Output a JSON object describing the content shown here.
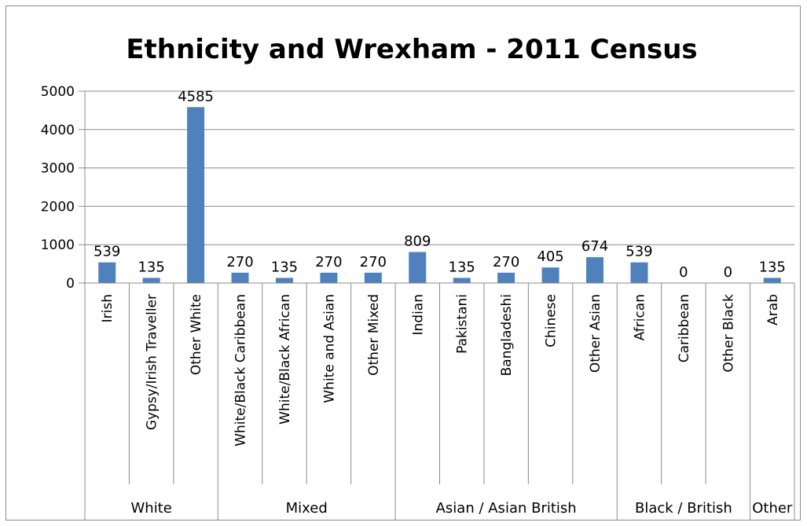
{
  "chart_data": {
    "type": "bar",
    "title": "Ethnicity and Wrexham - 2011 Census",
    "xlabel": "",
    "ylabel": "",
    "ylim": [
      0,
      5000
    ],
    "yticks": [
      "0",
      "1000",
      "2000",
      "3000",
      "4000",
      "5000"
    ],
    "grid": true,
    "legend": "none",
    "bar_color": "#4f81bd",
    "categories": [
      "Irish",
      "Gypsy/Irish Traveller",
      "Other White",
      "White/Black Caribbean",
      "White/Black African",
      "White and Asian",
      "Other Mixed",
      "Indian",
      "Pakistani",
      "Bangladeshi",
      "Chinese",
      "Other Asian",
      "African",
      "Caribbean",
      "Other Black",
      "Arab"
    ],
    "values": [
      539,
      135,
      4585,
      270,
      135,
      270,
      270,
      809,
      135,
      270,
      405,
      674,
      539,
      0,
      0,
      135
    ],
    "groups": [
      {
        "label": "White",
        "count": 3
      },
      {
        "label": "Mixed",
        "count": 4
      },
      {
        "label": "Asian / Asian British",
        "count": 5
      },
      {
        "label": "Black / British",
        "count": 3
      },
      {
        "label": "Other",
        "count": 1
      }
    ]
  }
}
